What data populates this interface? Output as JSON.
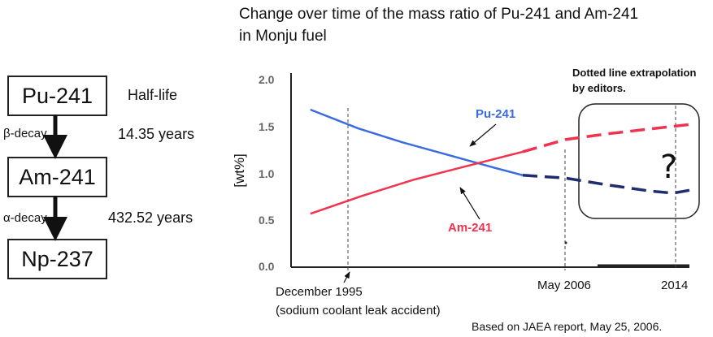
{
  "decay_chain": {
    "nuclides": [
      "Pu-241",
      "Am-241",
      "Np-237"
    ],
    "half_life_heading": "Half-life",
    "decays": [
      {
        "type": "β-decay",
        "half_life": "14.35 years"
      },
      {
        "type": "α-decay",
        "half_life": "432.52 years"
      }
    ]
  },
  "chart_data": {
    "type": "line",
    "title_line1": "Change over time of the mass ratio of Pu-241 and Am-241",
    "title_line2": "in Monju fuel",
    "ylabel": "[wt%]",
    "xlabel": "",
    "ylim": [
      0.0,
      2.0
    ],
    "ytick_labels": [
      "2.0",
      "1.5",
      "1.0",
      "0.5",
      "0.0"
    ],
    "xlim": [
      1995.0,
      2014.6
    ],
    "x_labels": {
      "december_1995": "December 1995",
      "accident": "(sodium coolant leak accident)",
      "may_2006": "May 2006",
      "y2014": "2014"
    },
    "series": [
      {
        "name": "Pu-241",
        "color": "#3a6be0",
        "points": [
          [
            1995.95,
            1.68
          ],
          [
            1998.3,
            1.48
          ],
          [
            2000.5,
            1.33
          ],
          [
            2003.0,
            1.18
          ],
          [
            2005.0,
            1.06
          ],
          [
            2006.4,
            0.98
          ]
        ],
        "extrapolated": [
          [
            2006.4,
            0.98
          ],
          [
            2008.5,
            0.95
          ],
          [
            2010.5,
            0.88
          ],
          [
            2012.7,
            0.81
          ],
          [
            2013.8,
            0.79
          ],
          [
            2014.6,
            0.82
          ]
        ]
      },
      {
        "name": "Am-241",
        "color": "#f0334e",
        "points": [
          [
            1995.95,
            0.57
          ],
          [
            1998.5,
            0.76
          ],
          [
            2001.0,
            0.93
          ],
          [
            2003.5,
            1.07
          ],
          [
            2006.4,
            1.23
          ]
        ],
        "extrapolated": [
          [
            2006.4,
            1.23
          ],
          [
            2008.5,
            1.36
          ],
          [
            2010.5,
            1.42
          ],
          [
            2012.5,
            1.47
          ],
          [
            2014.6,
            1.52
          ]
        ]
      }
    ],
    "extrapolation_note_line1": "Dotted line extrapolation",
    "extrapolation_note_line2": "by editors.",
    "question_mark": "?",
    "source": "Based on JAEA report, May 25, 2006."
  }
}
